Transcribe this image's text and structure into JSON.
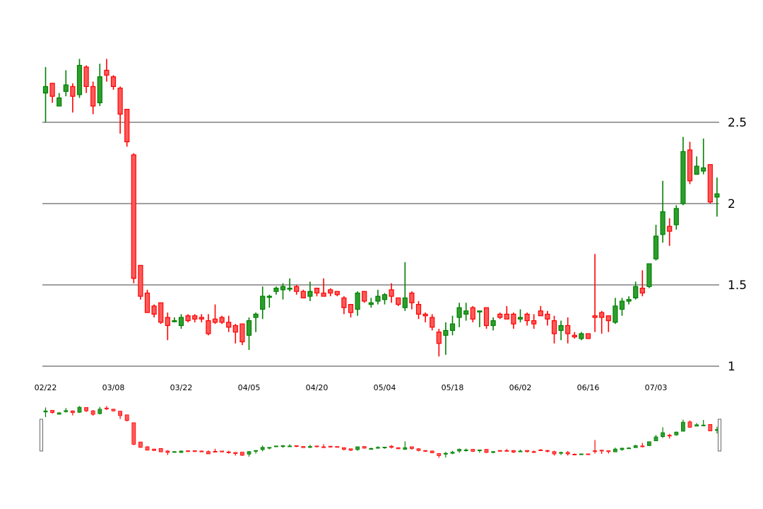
{
  "colors": {
    "up": "#008000",
    "down": "#ff0000",
    "grid": "#808080",
    "handle": "#666666"
  },
  "chart_data": {
    "type": "candlestick",
    "title": "",
    "xlabel": "",
    "ylabel": "",
    "ylim": [
      1.0,
      2.7
    ],
    "y_ticks": [
      1,
      1.5,
      2,
      2.5
    ],
    "y_tick_labels": [
      "1",
      "1.5",
      "2",
      "2.5"
    ],
    "y_axis_position": "right",
    "grid": "horizontal",
    "x_tick_labels": [
      "02/22",
      "03/08",
      "03/22",
      "04/05",
      "04/20",
      "05/04",
      "05/18",
      "06/02",
      "06/16",
      "07/03"
    ],
    "x_tick_index": [
      0,
      10,
      20,
      30,
      40,
      50,
      60,
      70,
      80,
      90
    ],
    "navigator": {
      "shown": true,
      "handles": "both"
    },
    "candles": [
      [
        2.68,
        2.84,
        2.5,
        2.72
      ],
      [
        2.74,
        2.74,
        2.62,
        2.66
      ],
      [
        2.6,
        2.68,
        2.6,
        2.65
      ],
      [
        2.69,
        2.82,
        2.66,
        2.73
      ],
      [
        2.72,
        2.74,
        2.56,
        2.66
      ],
      [
        2.67,
        2.89,
        2.65,
        2.85
      ],
      [
        2.84,
        2.85,
        2.68,
        2.72
      ],
      [
        2.72,
        2.75,
        2.55,
        2.6
      ],
      [
        2.62,
        2.86,
        2.6,
        2.78
      ],
      [
        2.82,
        2.89,
        2.75,
        2.79
      ],
      [
        2.78,
        2.79,
        2.7,
        2.72
      ],
      [
        2.71,
        2.72,
        2.43,
        2.55
      ],
      [
        2.58,
        2.58,
        2.35,
        2.38
      ],
      [
        2.3,
        2.31,
        1.51,
        1.54
      ],
      [
        1.62,
        1.62,
        1.41,
        1.43
      ],
      [
        1.45,
        1.47,
        1.33,
        1.33
      ],
      [
        1.37,
        1.38,
        1.3,
        1.32
      ],
      [
        1.39,
        1.39,
        1.26,
        1.27
      ],
      [
        1.3,
        1.33,
        1.16,
        1.25
      ],
      [
        1.28,
        1.3,
        1.27,
        1.28
      ],
      [
        1.25,
        1.32,
        1.23,
        1.3
      ],
      [
        1.31,
        1.32,
        1.27,
        1.28
      ],
      [
        1.31,
        1.32,
        1.27,
        1.29
      ],
      [
        1.3,
        1.32,
        1.27,
        1.29
      ],
      [
        1.28,
        1.32,
        1.19,
        1.2
      ],
      [
        1.29,
        1.38,
        1.26,
        1.27
      ],
      [
        1.3,
        1.31,
        1.26,
        1.27
      ],
      [
        1.27,
        1.31,
        1.21,
        1.24
      ],
      [
        1.25,
        1.26,
        1.14,
        1.21
      ],
      [
        1.26,
        1.26,
        1.13,
        1.15
      ],
      [
        1.19,
        1.3,
        1.1,
        1.28
      ],
      [
        1.3,
        1.33,
        1.21,
        1.32
      ],
      [
        1.35,
        1.49,
        1.29,
        1.43
      ],
      [
        1.43,
        1.44,
        1.36,
        1.43
      ],
      [
        1.46,
        1.49,
        1.44,
        1.48
      ],
      [
        1.47,
        1.51,
        1.41,
        1.49
      ],
      [
        1.48,
        1.54,
        1.46,
        1.48
      ],
      [
        1.49,
        1.5,
        1.44,
        1.46
      ],
      [
        1.46,
        1.47,
        1.42,
        1.42
      ],
      [
        1.43,
        1.52,
        1.4,
        1.46
      ],
      [
        1.48,
        1.48,
        1.43,
        1.45
      ],
      [
        1.45,
        1.54,
        1.43,
        1.43
      ],
      [
        1.47,
        1.48,
        1.43,
        1.45
      ],
      [
        1.46,
        1.46,
        1.43,
        1.44
      ],
      [
        1.42,
        1.43,
        1.32,
        1.36
      ],
      [
        1.38,
        1.38,
        1.3,
        1.33
      ],
      [
        1.35,
        1.46,
        1.31,
        1.45
      ],
      [
        1.46,
        1.46,
        1.39,
        1.4
      ],
      [
        1.38,
        1.42,
        1.36,
        1.39
      ],
      [
        1.4,
        1.47,
        1.38,
        1.43
      ],
      [
        1.41,
        1.45,
        1.38,
        1.44
      ],
      [
        1.47,
        1.51,
        1.39,
        1.43
      ],
      [
        1.42,
        1.42,
        1.37,
        1.38
      ],
      [
        1.36,
        1.64,
        1.34,
        1.42
      ],
      [
        1.45,
        1.46,
        1.35,
        1.39
      ],
      [
        1.38,
        1.4,
        1.29,
        1.32
      ],
      [
        1.32,
        1.33,
        1.27,
        1.31
      ],
      [
        1.3,
        1.32,
        1.22,
        1.24
      ],
      [
        1.21,
        1.23,
        1.06,
        1.14
      ],
      [
        1.19,
        1.27,
        1.07,
        1.22
      ],
      [
        1.22,
        1.31,
        1.19,
        1.26
      ],
      [
        1.3,
        1.39,
        1.24,
        1.36
      ],
      [
        1.32,
        1.39,
        1.28,
        1.34
      ],
      [
        1.36,
        1.37,
        1.27,
        1.29
      ],
      [
        1.34,
        1.34,
        1.24,
        1.34
      ],
      [
        1.36,
        1.36,
        1.23,
        1.25
      ],
      [
        1.25,
        1.3,
        1.22,
        1.28
      ],
      [
        1.32,
        1.33,
        1.29,
        1.3
      ],
      [
        1.32,
        1.37,
        1.29,
        1.29
      ],
      [
        1.32,
        1.33,
        1.23,
        1.26
      ],
      [
        1.29,
        1.35,
        1.27,
        1.3
      ],
      [
        1.32,
        1.33,
        1.25,
        1.28
      ],
      [
        1.28,
        1.32,
        1.23,
        1.26
      ],
      [
        1.34,
        1.37,
        1.31,
        1.31
      ],
      [
        1.32,
        1.34,
        1.25,
        1.29
      ],
      [
        1.28,
        1.31,
        1.14,
        1.2
      ],
      [
        1.22,
        1.28,
        1.16,
        1.25
      ],
      [
        1.25,
        1.3,
        1.14,
        1.2
      ],
      [
        1.19,
        1.21,
        1.17,
        1.18
      ],
      [
        1.17,
        1.21,
        1.16,
        1.2
      ],
      [
        1.2,
        1.2,
        1.17,
        1.17
      ],
      [
        1.31,
        1.69,
        1.21,
        1.3
      ],
      [
        1.33,
        1.34,
        1.2,
        1.3
      ],
      [
        1.31,
        1.31,
        1.21,
        1.28
      ],
      [
        1.27,
        1.42,
        1.26,
        1.37
      ],
      [
        1.35,
        1.42,
        1.31,
        1.4
      ],
      [
        1.4,
        1.43,
        1.38,
        1.41
      ],
      [
        1.42,
        1.52,
        1.41,
        1.49
      ],
      [
        1.48,
        1.59,
        1.43,
        1.45
      ],
      [
        1.49,
        1.63,
        1.48,
        1.63
      ],
      [
        1.66,
        1.87,
        1.65,
        1.8
      ],
      [
        1.81,
        2.14,
        1.76,
        1.95
      ],
      [
        1.86,
        1.91,
        1.74,
        1.83
      ],
      [
        1.87,
        1.99,
        1.84,
        1.97
      ],
      [
        2.0,
        2.41,
        1.99,
        2.32
      ],
      [
        2.33,
        2.38,
        2.12,
        2.14
      ],
      [
        2.18,
        2.29,
        2.18,
        2.23
      ],
      [
        2.2,
        2.4,
        2.18,
        2.22
      ],
      [
        2.24,
        2.24,
        2.0,
        2.01
      ],
      [
        2.04,
        2.16,
        1.92,
        2.06
      ]
    ]
  }
}
